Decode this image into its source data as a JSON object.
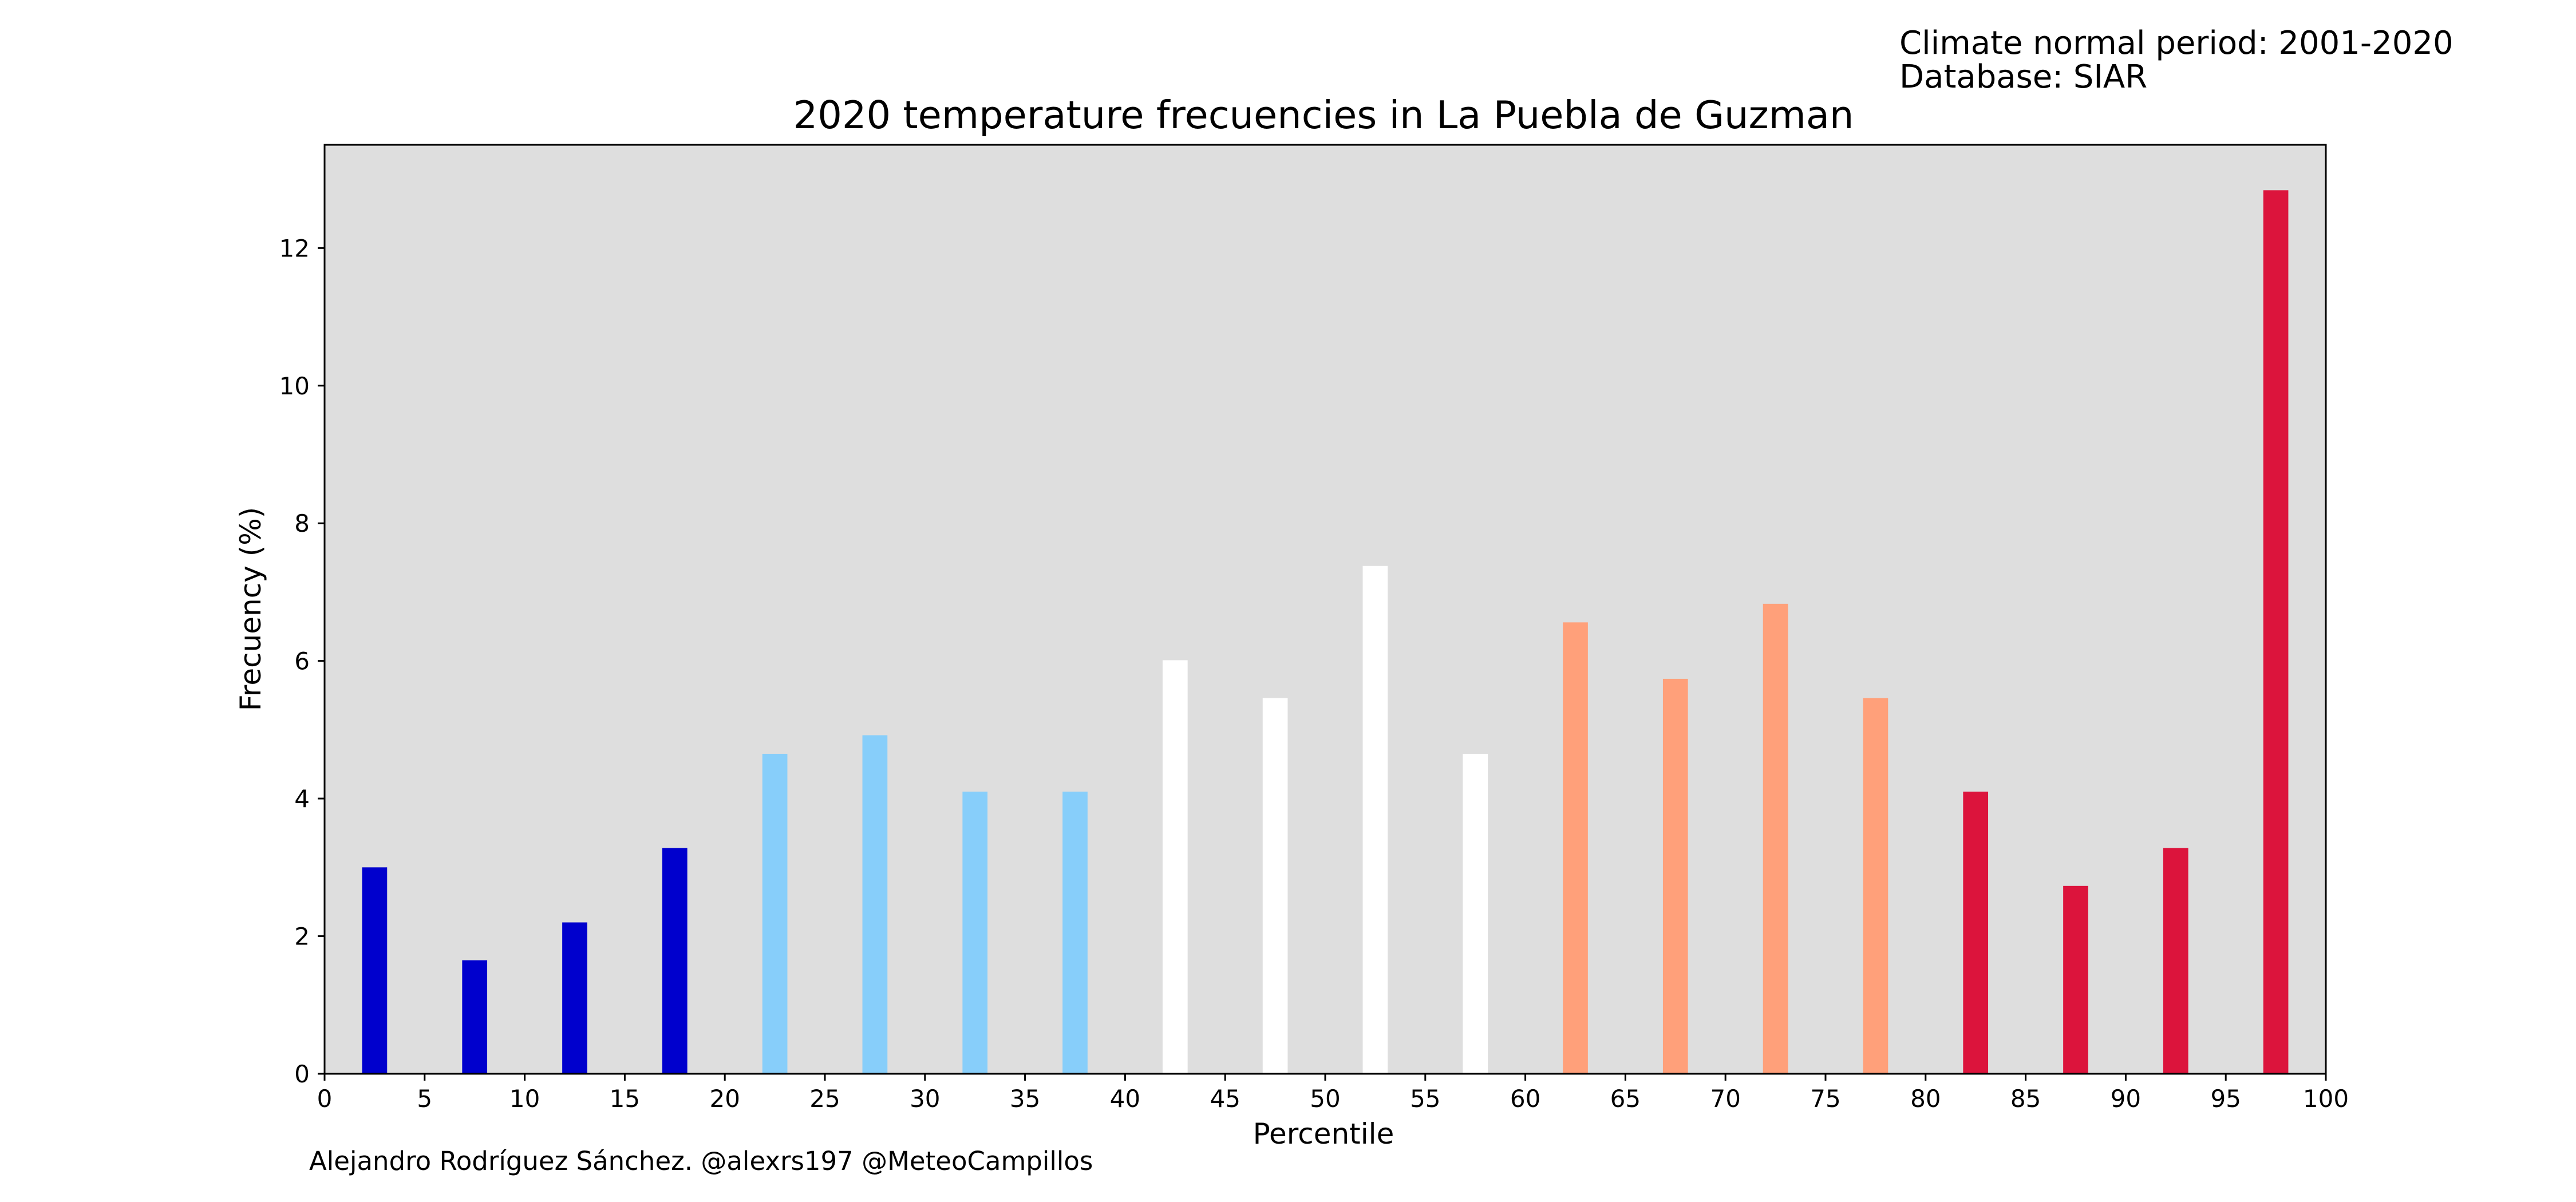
{
  "header": {
    "climate_period": "Climate normal period: 2001-2020",
    "database": "Database: SIAR"
  },
  "credit": "Alejandro Rodríguez Sánchez. @alexrs197 @MeteoCampillos",
  "colors": {
    "plot_background": "#dedede",
    "very_cold": "#0000cd",
    "cold": "#87cefa",
    "normal": "#ffffff",
    "warm": "#ffa07a",
    "very_warm": "#dc143c"
  },
  "chart_data": {
    "type": "bar",
    "title": "2020 temperature frecuencies in La Puebla de Guzman",
    "xlabel": "Percentile",
    "ylabel": "Frecuency (%)",
    "xlim": [
      0,
      100
    ],
    "ylim": [
      0,
      13.5
    ],
    "xticks": [
      0,
      5,
      10,
      15,
      20,
      25,
      30,
      35,
      40,
      45,
      50,
      55,
      60,
      65,
      70,
      75,
      80,
      85,
      90,
      95,
      100
    ],
    "yticks": [
      0,
      2,
      4,
      6,
      8,
      10,
      12
    ],
    "grid": false,
    "legend": "none",
    "bar_width": 1.25,
    "bars": [
      {
        "x": 2.5,
        "value": 3.0,
        "color": "#0000cd"
      },
      {
        "x": 7.5,
        "value": 1.65,
        "color": "#0000cd"
      },
      {
        "x": 12.5,
        "value": 2.2,
        "color": "#0000cd"
      },
      {
        "x": 17.5,
        "value": 3.28,
        "color": "#0000cd"
      },
      {
        "x": 22.5,
        "value": 4.65,
        "color": "#87cefa"
      },
      {
        "x": 27.5,
        "value": 4.92,
        "color": "#87cefa"
      },
      {
        "x": 32.5,
        "value": 4.1,
        "color": "#87cefa"
      },
      {
        "x": 37.5,
        "value": 4.1,
        "color": "#87cefa"
      },
      {
        "x": 42.5,
        "value": 6.01,
        "color": "#ffffff"
      },
      {
        "x": 47.5,
        "value": 5.46,
        "color": "#ffffff"
      },
      {
        "x": 52.5,
        "value": 7.38,
        "color": "#ffffff"
      },
      {
        "x": 57.5,
        "value": 4.65,
        "color": "#ffffff"
      },
      {
        "x": 62.5,
        "value": 6.56,
        "color": "#ffa07a"
      },
      {
        "x": 67.5,
        "value": 5.74,
        "color": "#ffa07a"
      },
      {
        "x": 72.5,
        "value": 6.83,
        "color": "#ffa07a"
      },
      {
        "x": 77.5,
        "value": 5.46,
        "color": "#ffa07a"
      },
      {
        "x": 82.5,
        "value": 4.1,
        "color": "#dc143c"
      },
      {
        "x": 87.5,
        "value": 2.73,
        "color": "#dc143c"
      },
      {
        "x": 92.5,
        "value": 3.28,
        "color": "#dc143c"
      },
      {
        "x": 97.5,
        "value": 12.84,
        "color": "#dc143c"
      }
    ]
  }
}
